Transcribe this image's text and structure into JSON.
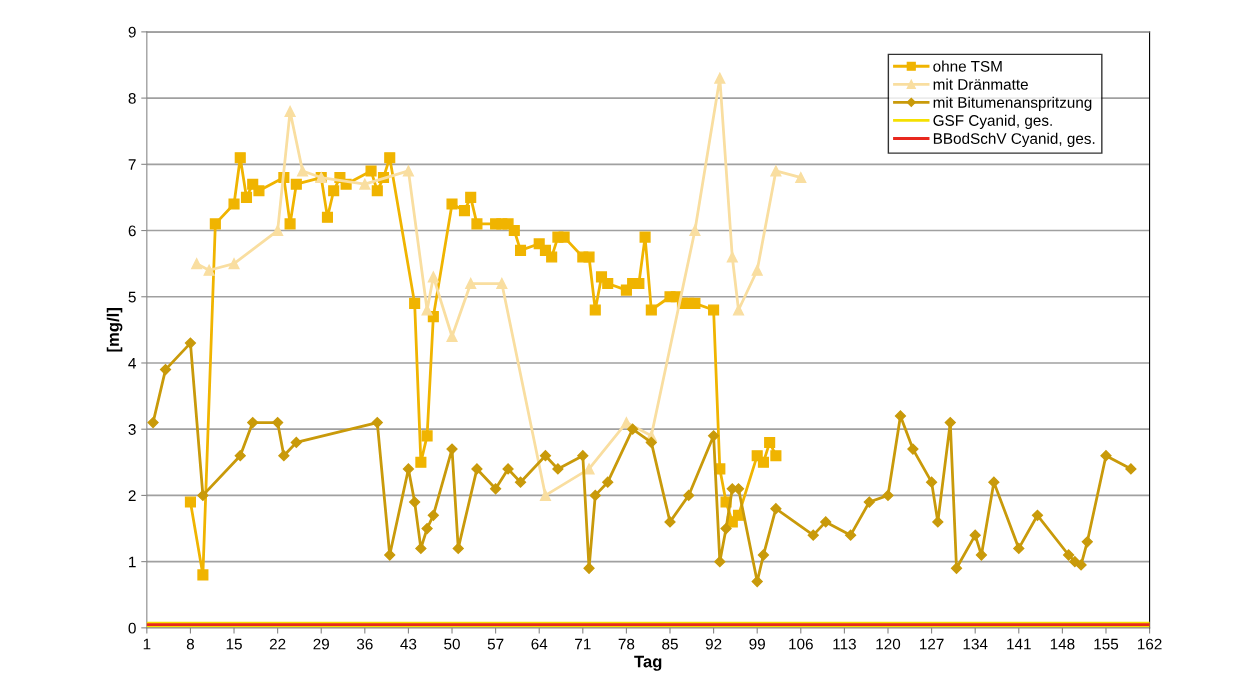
{
  "chart_data": {
    "type": "line",
    "xlabel": "Tag",
    "ylabel": "[mg/l]",
    "xlim": [
      1,
      162
    ],
    "xticks": [
      1,
      8,
      15,
      22,
      29,
      36,
      43,
      50,
      57,
      64,
      71,
      78,
      85,
      92,
      99,
      106,
      113,
      120,
      127,
      134,
      141,
      148,
      155,
      162
    ],
    "ylim": [
      0,
      9
    ],
    "yticks": [
      0,
      1,
      2,
      3,
      4,
      5,
      6,
      7,
      8,
      9
    ],
    "grid": "y",
    "legend": "top right",
    "series": [
      {
        "name": "ohne TSM",
        "color": "#f0b400",
        "marker": "square",
        "x": [
          8,
          10,
          12,
          15,
          16,
          17,
          18,
          19,
          23,
          24,
          25,
          29,
          30,
          31,
          32,
          33,
          37,
          38,
          39,
          40,
          44,
          45,
          46,
          47,
          50,
          52,
          53,
          54,
          57,
          58,
          59,
          60,
          61,
          64,
          65,
          66,
          67,
          68,
          71,
          72,
          73,
          74,
          75,
          78,
          79,
          80,
          81,
          82,
          85,
          86,
          87,
          88,
          89,
          92,
          93,
          94,
          95,
          96,
          99,
          100,
          101,
          102
        ],
        "values": [
          1.9,
          0.8,
          6.1,
          6.4,
          7.1,
          6.5,
          6.7,
          6.6,
          6.8,
          6.1,
          6.7,
          6.8,
          6.2,
          6.6,
          6.8,
          6.7,
          6.9,
          6.6,
          6.8,
          7.1,
          4.9,
          2.5,
          2.9,
          4.7,
          6.4,
          6.3,
          6.5,
          6.1,
          6.1,
          6.1,
          6.1,
          6.0,
          5.7,
          5.8,
          5.7,
          5.6,
          5.9,
          5.9,
          5.6,
          5.6,
          4.8,
          5.3,
          5.2,
          5.1,
          5.2,
          5.2,
          5.9,
          4.8,
          5.0,
          5.0,
          4.9,
          4.9,
          4.9,
          4.8,
          2.4,
          1.9,
          1.6,
          1.7,
          2.6,
          2.5,
          2.8,
          2.6
        ]
      },
      {
        "name": "mit Dränmatte",
        "color": "#f9dea0",
        "marker": "triangle",
        "x": [
          9,
          11,
          15,
          22,
          24,
          26,
          29,
          36,
          43,
          46,
          47,
          50,
          53,
          58,
          65,
          72,
          78,
          82,
          89,
          93,
          95,
          96,
          99,
          102,
          106
        ],
        "values": [
          5.5,
          5.4,
          5.5,
          6.0,
          7.8,
          6.9,
          6.8,
          6.7,
          6.9,
          4.8,
          5.3,
          4.4,
          5.2,
          5.2,
          2.0,
          2.4,
          3.1,
          2.9,
          6.0,
          8.3,
          5.6,
          4.8,
          5.4,
          6.9,
          6.8
        ]
      },
      {
        "name": "mit Bitumenanspritzung",
        "color": "#c99a0a",
        "marker": "diamond",
        "x": [
          2,
          4,
          8,
          10,
          16,
          18,
          22,
          23,
          25,
          38,
          40,
          43,
          44,
          45,
          46,
          47,
          50,
          51,
          54,
          57,
          59,
          61,
          65,
          67,
          71,
          72,
          73,
          75,
          79,
          82,
          85,
          88,
          92,
          93,
          94,
          95,
          96,
          99,
          100,
          102,
          108,
          110,
          114,
          117,
          120,
          122,
          124,
          127,
          128,
          130,
          131,
          134,
          135,
          137,
          141,
          144,
          149,
          150,
          151,
          152,
          155,
          159
        ],
        "values": [
          3.1,
          3.9,
          4.3,
          2.0,
          2.6,
          3.1,
          3.1,
          2.6,
          2.8,
          3.1,
          1.1,
          2.4,
          1.9,
          1.2,
          1.5,
          1.7,
          2.7,
          1.2,
          2.4,
          2.1,
          2.4,
          2.2,
          2.6,
          2.4,
          2.6,
          0.9,
          2.0,
          2.2,
          3.0,
          2.8,
          1.6,
          2.0,
          2.9,
          1.0,
          1.5,
          2.1,
          2.1,
          0.7,
          1.1,
          1.8,
          1.4,
          1.6,
          1.4,
          1.9,
          2.0,
          3.2,
          2.7,
          2.2,
          1.6,
          3.1,
          0.9,
          1.4,
          1.1,
          2.2,
          1.2,
          1.7,
          1.1,
          1.0,
          0.95,
          1.3,
          2.6,
          2.4
        ]
      },
      {
        "name": "GSF Cyanid, ges.",
        "color": "#f5e000",
        "marker": "none",
        "x": [
          1,
          162
        ],
        "values": [
          0.05,
          0.05
        ]
      },
      {
        "name": "BBodSchV Cyanid, ges.",
        "color": "#e8281e",
        "marker": "none",
        "x": [
          1,
          162
        ],
        "values": [
          0.05,
          0.05
        ]
      }
    ]
  }
}
